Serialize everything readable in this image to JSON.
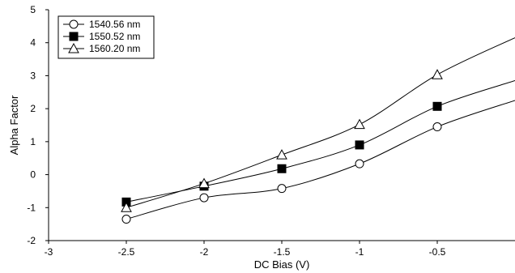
{
  "chart_data": {
    "type": "line",
    "xlabel": "DC Bias (V)",
    "ylabel": "Alpha Factor",
    "xlim": [
      -3,
      0
    ],
    "ylim": [
      -2,
      5
    ],
    "xticks": [
      -3,
      -2.5,
      -2,
      -1.5,
      -1,
      -0.5
    ],
    "xtick_labels": [
      "-3",
      "-2.5",
      "-2",
      "-1.5",
      "-1",
      "-0.5"
    ],
    "yticks": [
      -2,
      -1,
      0,
      1,
      2,
      3,
      4,
      5
    ],
    "ytick_labels": [
      "-2",
      "-1",
      "0",
      "1",
      "2",
      "3",
      "4",
      "5"
    ],
    "grid": false,
    "legend_position": "top-left",
    "series": [
      {
        "name": "1540.56 nm",
        "marker": "circle-open",
        "x": [
          -2.5,
          -2.0,
          -1.5,
          -1.0,
          -0.5
        ],
        "y": [
          -1.35,
          -0.7,
          -0.42,
          0.33,
          1.45
        ],
        "line_x": [
          -2.5,
          -2.0,
          -1.5,
          -1.0,
          -0.5,
          0.0
        ],
        "line_y": [
          -1.35,
          -0.7,
          -0.42,
          0.33,
          1.45,
          2.25
        ]
      },
      {
        "name": "1550.52 nm",
        "marker": "square-filled",
        "x": [
          -2.5,
          -2.0,
          -1.5,
          -1.0,
          -0.5
        ],
        "y": [
          -0.83,
          -0.35,
          0.18,
          0.9,
          2.07
        ],
        "line_x": [
          -2.5,
          -2.0,
          -1.5,
          -1.0,
          -0.5,
          0.0
        ],
        "line_y": [
          -0.83,
          -0.35,
          0.18,
          0.9,
          2.07,
          2.85
        ]
      },
      {
        "name": "1560.20 nm",
        "marker": "triangle-open",
        "x": [
          -2.5,
          -2.0,
          -1.5,
          -1.0,
          -0.5
        ],
        "y": [
          -1.0,
          -0.27,
          0.6,
          1.52,
          3.03
        ],
        "line_x": [
          -2.5,
          -2.0,
          -1.5,
          -1.0,
          -0.5,
          0.0
        ],
        "line_y": [
          -1.0,
          -0.27,
          0.6,
          1.52,
          3.03,
          4.15
        ]
      }
    ]
  }
}
